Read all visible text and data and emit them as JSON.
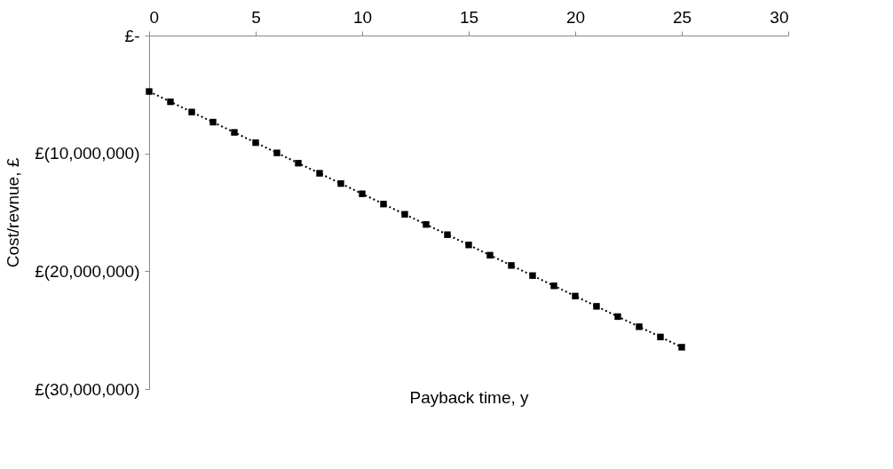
{
  "chart_data": {
    "type": "line",
    "xlabel": "Payback time, y",
    "ylabel": "Cost/revnue, £",
    "x": [
      0,
      1,
      2,
      3,
      4,
      5,
      6,
      7,
      8,
      9,
      10,
      11,
      12,
      13,
      14,
      15,
      16,
      17,
      18,
      19,
      20,
      21,
      22,
      23,
      24,
      25
    ],
    "series": [
      {
        "color": "#000000",
        "values": [
          -4750000,
          -5620000,
          -6490000,
          -7350000,
          -8220000,
          -9090000,
          -9960000,
          -10830000,
          -11690000,
          -12560000,
          -13430000,
          -14300000,
          -15170000,
          -16030000,
          -16900000,
          -17770000,
          -18640000,
          -19510000,
          -20370000,
          -21240000,
          -22110000,
          -22980000,
          -23850000,
          -24710000,
          -25580000,
          -26450000
        ]
      }
    ],
    "xlim": [
      0,
      30
    ],
    "xticks": [
      0,
      5,
      10,
      15,
      20,
      25,
      30
    ],
    "ylim": [
      -30000000,
      0
    ],
    "yticks": [
      {
        "value": 0,
        "label": "£-"
      },
      {
        "value": -10000000,
        "label": "£(10,000,000)"
      },
      {
        "value": -20000000,
        "label": "£(20,000,000)"
      },
      {
        "value": -30000000,
        "label": "£(30,000,000)"
      }
    ],
    "marker": "square",
    "line_style": "dotted",
    "grid": false
  }
}
